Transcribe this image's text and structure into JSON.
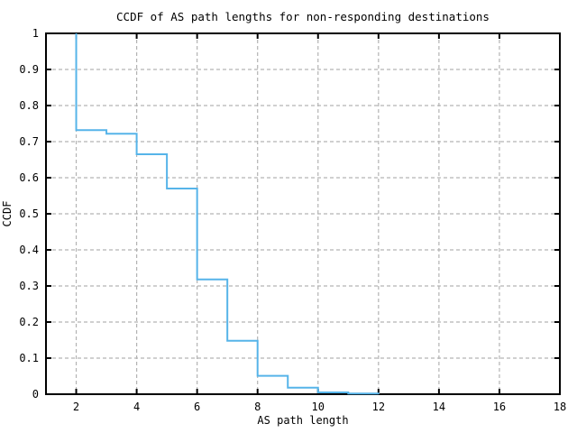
{
  "chart_data": {
    "type": "line",
    "subtype": "step-ccdf",
    "title": "CCDF of AS path lengths for non-responding destinations",
    "xlabel": "AS path length",
    "ylabel": "CCDF",
    "xlim": [
      1,
      18
    ],
    "ylim": [
      0,
      1
    ],
    "grid": true,
    "legend": "none",
    "xticks": {
      "values": [
        2,
        4,
        6,
        8,
        10,
        12,
        14,
        16,
        18
      ],
      "labels": [
        "2",
        "4",
        "6",
        "8",
        "10",
        "12",
        "14",
        "16",
        "18"
      ]
    },
    "yticks": {
      "values": [
        0,
        0.1,
        0.2,
        0.3,
        0.4,
        0.5,
        0.6,
        0.7,
        0.8,
        0.9,
        1
      ],
      "labels": [
        "0",
        "0.1",
        "0.2",
        "0.3",
        "0.4",
        "0.5",
        "0.6",
        "0.7",
        "0.8",
        "0.9",
        "1"
      ]
    },
    "series": [
      {
        "name": "ccdf-of-as-path-length",
        "start": [
          2,
          1.0
        ],
        "steps": [
          [
            2,
            0.732
          ],
          [
            3,
            0.722
          ],
          [
            4,
            0.665
          ],
          [
            5,
            0.57
          ],
          [
            6,
            0.318
          ],
          [
            7,
            0.148
          ],
          [
            8,
            0.051
          ],
          [
            9,
            0.018
          ],
          [
            10,
            0.005
          ],
          [
            11,
            0.002
          ],
          [
            12,
            0
          ]
        ]
      }
    ],
    "colors": {
      "line": "#56b4e9",
      "grid": "#b3b3b3",
      "axis": "#000000",
      "text": "#000000",
      "background": "#ffffff"
    }
  }
}
